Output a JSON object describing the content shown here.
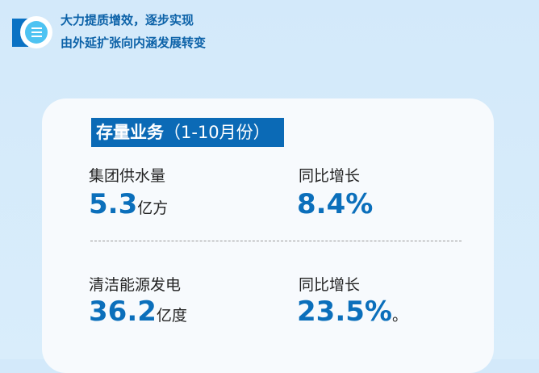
{
  "header": {
    "icon": "menu-icon",
    "line1": "大力提质增效，逐步实现",
    "line2": "由外延扩张向内涵发展转变"
  },
  "card": {
    "title": "存量业务",
    "title_period": "（1-10月份）",
    "items": [
      {
        "label": "集团供水量",
        "value": "5.3",
        "unit": "亿方",
        "yoy_label": "同比增长",
        "yoy_value": "8.4%",
        "yoy_suffix": ""
      },
      {
        "label": "清洁能源发电",
        "value": "36.2",
        "unit": "亿度",
        "yoy_label": "同比增长",
        "yoy_value": "23.5%",
        "yoy_suffix": "。"
      }
    ]
  },
  "colors": {
    "accent": "#0b6ab6",
    "value": "#0b6fbb",
    "background": "#d3e9fa"
  }
}
